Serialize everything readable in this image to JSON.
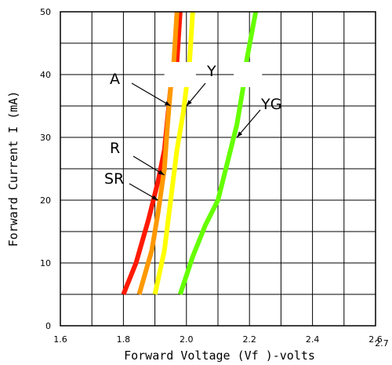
{
  "chart_data": {
    "type": "line",
    "xlabel": "Forward Voltage (Vf )-volts",
    "ylabel": "Forward Current  I   (mA)",
    "x_ticks": [
      "1.6",
      "1.8",
      "2.0",
      "2.2",
      "2.4",
      "2.6"
    ],
    "x_tick_extra": "2.7",
    "y_ticks": [
      "0",
      "10",
      "20",
      "30",
      "40",
      "50"
    ],
    "xlim": [
      1.6,
      2.6
    ],
    "ylim": [
      0,
      50
    ],
    "grid": true,
    "break_y": [
      38,
      42
    ],
    "series": [
      {
        "label": "SR",
        "color": "#ff1a00",
        "points": [
          [
            1.8,
            5
          ],
          [
            1.84,
            10
          ],
          [
            1.88,
            17
          ],
          [
            1.91,
            23
          ],
          [
            1.93,
            28
          ],
          [
            1.94,
            33
          ],
          [
            1.95,
            38
          ],
          [
            1.97,
            42
          ],
          [
            1.98,
            50
          ]
        ]
      },
      {
        "label": "A",
        "color": "#ff9900",
        "points": [
          [
            1.85,
            5
          ],
          [
            1.89,
            12
          ],
          [
            1.91,
            18
          ],
          [
            1.93,
            25
          ],
          [
            1.94,
            32
          ],
          [
            1.95,
            38
          ],
          [
            1.96,
            42
          ],
          [
            1.97,
            50
          ]
        ]
      },
      {
        "label": "Y",
        "color": "#ffff00",
        "points": [
          [
            1.9,
            5
          ],
          [
            1.93,
            12
          ],
          [
            1.95,
            20
          ],
          [
            1.97,
            28
          ],
          [
            1.99,
            34
          ],
          [
            2.0,
            38
          ],
          [
            2.01,
            42
          ],
          [
            2.02,
            50
          ]
        ]
      },
      {
        "label": "YG",
        "color": "#66ff00",
        "points": [
          [
            1.98,
            5
          ],
          [
            2.02,
            11
          ],
          [
            2.06,
            16
          ],
          [
            2.1,
            20
          ],
          [
            2.13,
            26
          ],
          [
            2.16,
            32
          ],
          [
            2.18,
            38
          ],
          [
            2.19,
            42
          ],
          [
            2.22,
            50
          ]
        ]
      }
    ],
    "annotations": [
      {
        "text": "A",
        "points_to": [
          1.95,
          35
        ]
      },
      {
        "text": "Y",
        "points_to": [
          2.0,
          35
        ]
      },
      {
        "text": "YG",
        "points_to": [
          2.16,
          30
        ]
      },
      {
        "text": "R",
        "points_to": [
          1.93,
          24
        ]
      },
      {
        "text": "SR",
        "points_to": [
          1.91,
          20
        ]
      }
    ]
  }
}
